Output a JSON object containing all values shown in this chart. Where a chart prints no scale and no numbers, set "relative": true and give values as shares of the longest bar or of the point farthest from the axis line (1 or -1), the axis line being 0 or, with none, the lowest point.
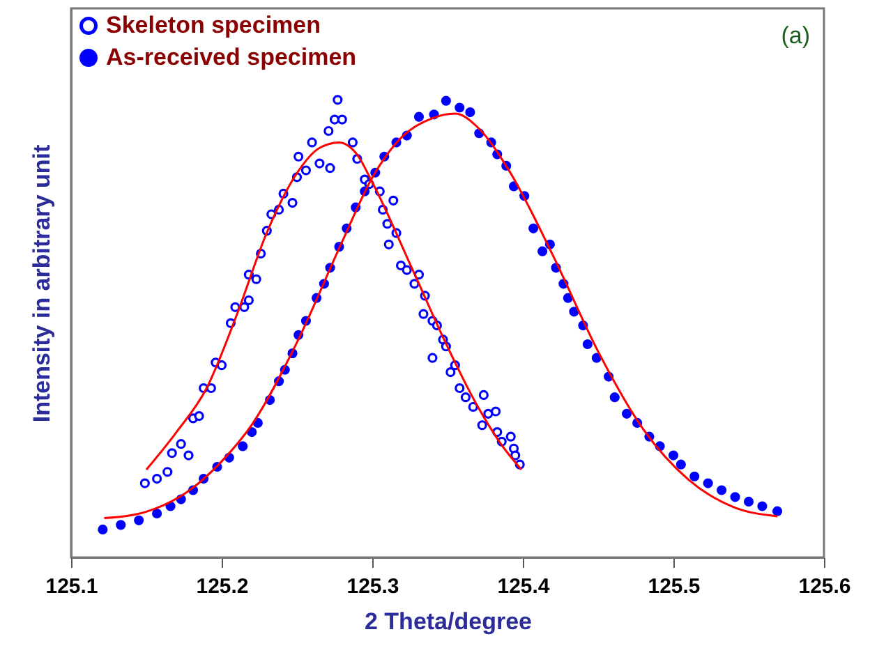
{
  "chart_data": {
    "type": "scatter",
    "xlabel": "2 Theta/degree",
    "ylabel": "Intensity in arbitrary unit",
    "xlim": [
      125.1,
      125.6
    ],
    "xticks": [
      125.1,
      125.2,
      125.3,
      125.4,
      125.5,
      125.6
    ],
    "relative": true,
    "legend": "top left",
    "marker": "circle",
    "grid": false,
    "annotations": [
      "(a)"
    ],
    "series": [
      {
        "name": "Skeleton specimen",
        "color": "#0000ff",
        "x": [
          125.149,
          125.157,
          125.164,
          125.167,
          125.173,
          125.178,
          125.181,
          125.185,
          125.188,
          125.193,
          125.196,
          125.2,
          125.206,
          125.209,
          125.215,
          125.218,
          125.218,
          125.223,
          125.226,
          125.23,
          125.233,
          125.238,
          125.241,
          125.247,
          125.25,
          125.251,
          125.256,
          125.26,
          125.265,
          125.271,
          125.272,
          125.275,
          125.277,
          125.28,
          125.287,
          125.29,
          125.295,
          125.298,
          125.305,
          125.307,
          125.31,
          125.314,
          125.316,
          125.311,
          125.319,
          125.323,
          125.328,
          125.331,
          125.335,
          125.334,
          125.34,
          125.343,
          125.347,
          125.34,
          125.349,
          125.352,
          125.355,
          125.358,
          125.362,
          125.367,
          125.374,
          125.373,
          125.377,
          125.382,
          125.383,
          125.386,
          125.392,
          125.394,
          125.395,
          125.398
        ],
        "values": [
          0.162,
          0.172,
          0.187,
          0.228,
          0.248,
          0.223,
          0.304,
          0.309,
          0.37,
          0.37,
          0.426,
          0.42,
          0.512,
          0.547,
          0.547,
          0.562,
          0.618,
          0.608,
          0.664,
          0.714,
          0.75,
          0.76,
          0.795,
          0.775,
          0.831,
          0.876,
          0.846,
          0.907,
          0.861,
          0.932,
          0.851,
          0.957,
          1.0,
          0.957,
          0.907,
          0.871,
          0.826,
          0.816,
          0.8,
          0.76,
          0.729,
          0.78,
          0.709,
          0.684,
          0.638,
          0.628,
          0.598,
          0.618,
          0.572,
          0.532,
          0.517,
          0.507,
          0.476,
          0.436,
          0.461,
          0.405,
          0.42,
          0.37,
          0.35,
          0.329,
          0.355,
          0.289,
          0.314,
          0.319,
          0.274,
          0.253,
          0.264,
          0.238,
          0.223,
          0.203
        ]
      },
      {
        "name": "As-received specimen",
        "color": "#0000ff",
        "x": [
          125.121,
          125.133,
          125.145,
          125.157,
          125.166,
          125.173,
          125.181,
          125.188,
          125.197,
          125.205,
          125.214,
          125.22,
          125.224,
          125.232,
          125.238,
          125.242,
          125.247,
          125.251,
          125.256,
          125.263,
          125.268,
          125.272,
          125.278,
          125.283,
          125.289,
          125.295,
          125.302,
          125.308,
          125.316,
          125.323,
          125.331,
          125.341,
          125.349,
          125.358,
          125.365,
          125.371,
          125.379,
          125.383,
          125.389,
          125.394,
          125.401,
          125.407,
          125.413,
          125.418,
          125.422,
          125.427,
          125.43,
          125.434,
          125.44,
          125.443,
          125.449,
          125.457,
          125.461,
          125.469,
          125.476,
          125.484,
          125.491,
          125.5,
          125.505,
          125.514,
          125.523,
          125.532,
          125.541,
          125.55,
          125.559,
          125.569
        ],
        "values": [
          0.061,
          0.071,
          0.081,
          0.096,
          0.112,
          0.127,
          0.147,
          0.172,
          0.198,
          0.218,
          0.243,
          0.274,
          0.294,
          0.344,
          0.385,
          0.41,
          0.446,
          0.486,
          0.517,
          0.567,
          0.598,
          0.633,
          0.679,
          0.719,
          0.765,
          0.8,
          0.841,
          0.876,
          0.907,
          0.922,
          0.963,
          0.968,
          0.998,
          0.983,
          0.973,
          0.927,
          0.907,
          0.881,
          0.856,
          0.811,
          0.79,
          0.719,
          0.669,
          0.684,
          0.633,
          0.598,
          0.567,
          0.537,
          0.507,
          0.466,
          0.436,
          0.395,
          0.35,
          0.314,
          0.294,
          0.264,
          0.243,
          0.223,
          0.203,
          0.177,
          0.162,
          0.147,
          0.132,
          0.122,
          0.112,
          0.101
        ]
      },
      {
        "type": "line",
        "marker": "none",
        "color": "#ff0000",
        "x": [
          125.15,
          125.17,
          125.19,
          125.21,
          125.23,
          125.25,
          125.265,
          125.278,
          125.29,
          125.3,
          125.328,
          125.35,
          125.37,
          125.385,
          125.399
        ],
        "values": [
          0.192,
          0.274,
          0.37,
          0.53,
          0.71,
          0.84,
          0.895,
          0.907,
          0.88,
          0.82,
          0.62,
          0.46,
          0.33,
          0.25,
          0.192
        ]
      },
      {
        "type": "line",
        "marker": "none",
        "color": "#ff0000",
        "x": [
          125.122,
          125.15,
          125.18,
          125.2,
          125.22,
          125.25,
          125.28,
          125.3,
          125.32,
          125.34,
          125.355,
          125.37,
          125.39,
          125.42,
          125.45,
          125.48,
          125.51,
          125.54,
          125.569
        ],
        "values": [
          0.086,
          0.1,
          0.15,
          0.21,
          0.29,
          0.47,
          0.69,
          0.83,
          0.92,
          0.96,
          0.97,
          0.94,
          0.85,
          0.66,
          0.45,
          0.28,
          0.17,
          0.11,
          0.09
        ]
      }
    ]
  }
}
